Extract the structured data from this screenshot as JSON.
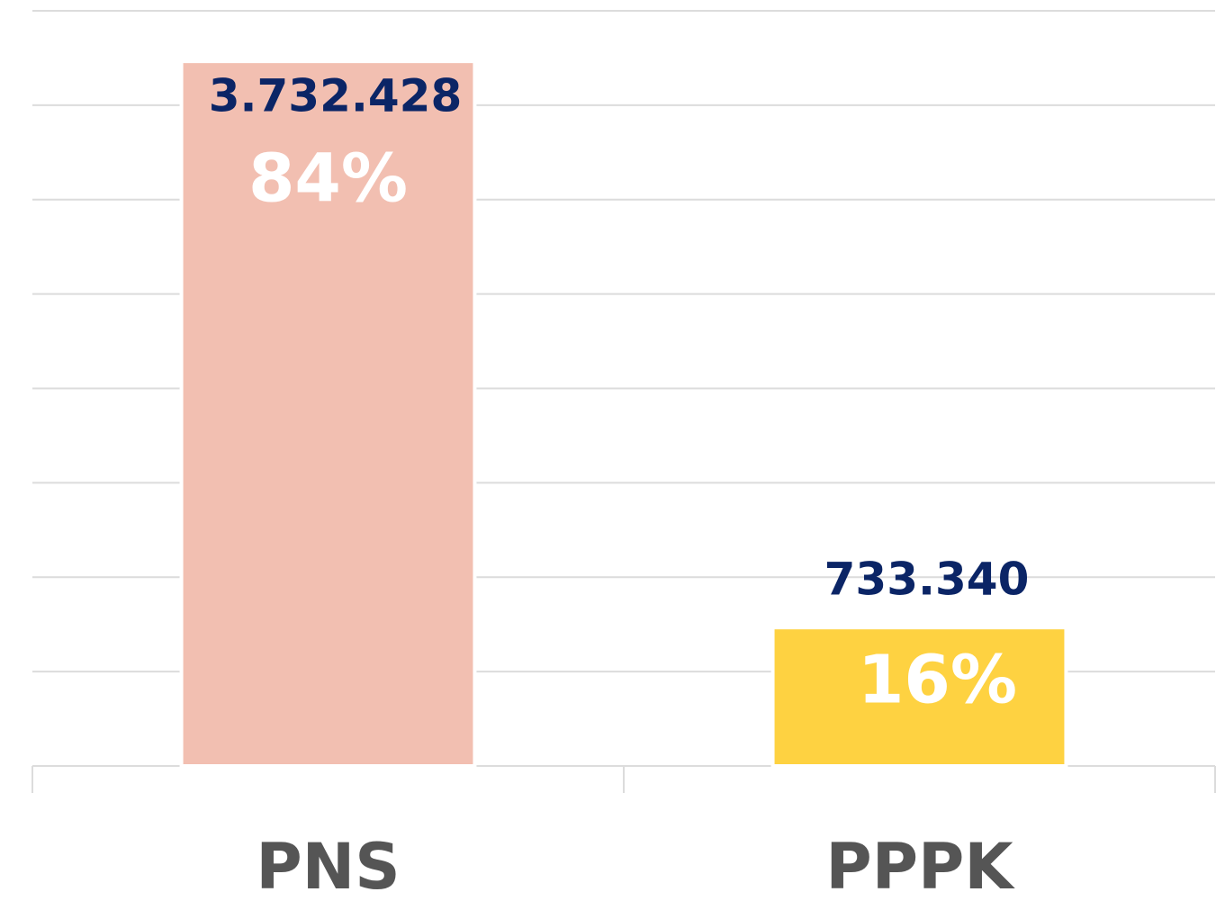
{
  "chart_data": {
    "type": "bar",
    "categories": [
      "PNS",
      "PPPK"
    ],
    "values": [
      3732428,
      733340
    ],
    "value_labels": [
      "3.732.428",
      "733.340"
    ],
    "shares": [
      84,
      16
    ],
    "share_labels": [
      "84%",
      "16%"
    ],
    "colors": [
      "#f2bfb1",
      "#fed241"
    ],
    "ylim": [
      0,
      4000000
    ],
    "yticks": [
      0,
      500000,
      1000000,
      1500000,
      2000000,
      2500000,
      3000000,
      3500000,
      4000000
    ],
    "grid": true
  }
}
